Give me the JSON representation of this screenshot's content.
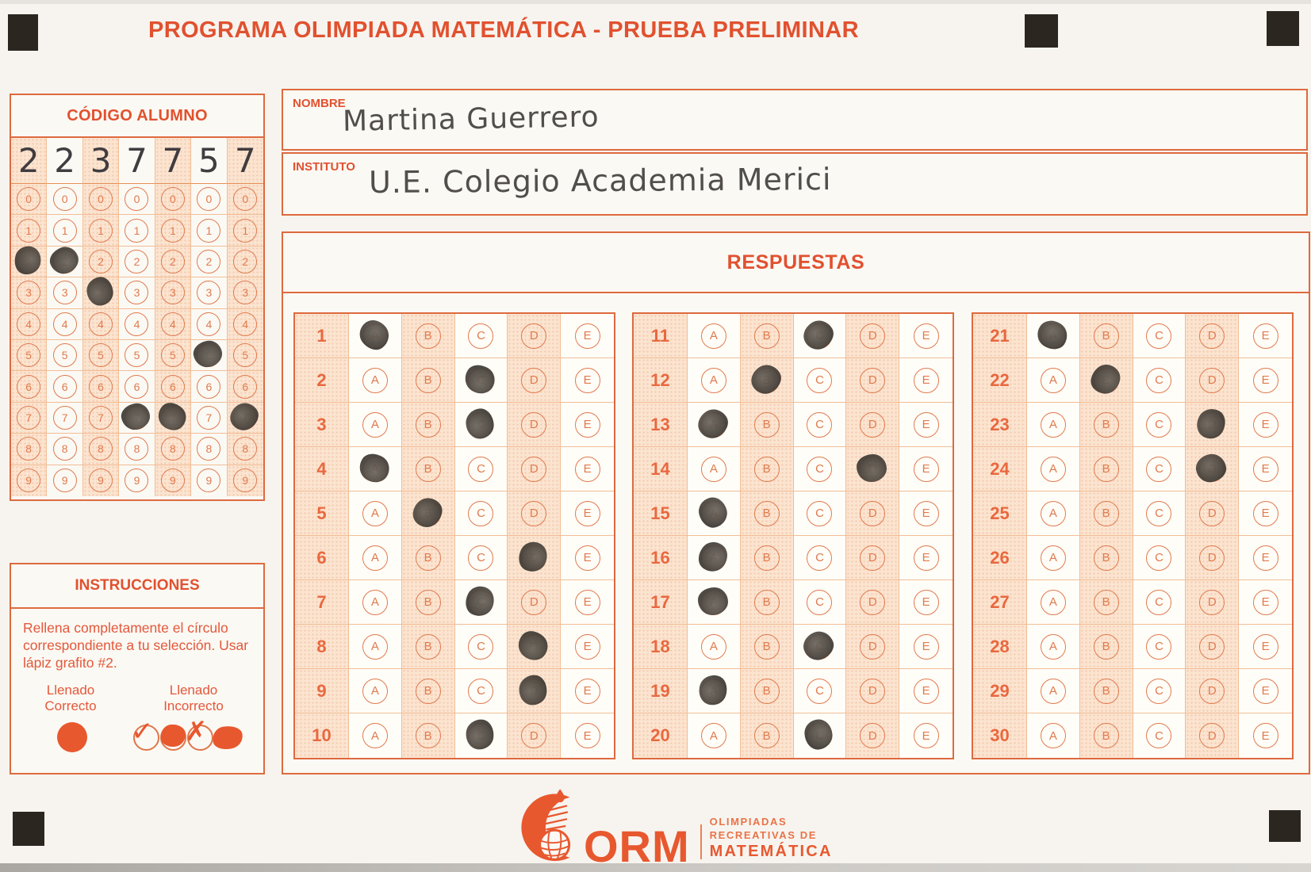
{
  "title": "PROGRAMA OLIMPIADA MATEMÁTICA  - PRUEBA PRELIMINAR",
  "colors": {
    "accent": "#e1512f",
    "bubble_border": "#e07a4e",
    "shaded_cell": "#fbe4d0",
    "pencil_graphite": "#46423d",
    "registration_mark": "#2b2620"
  },
  "codigo": {
    "header": "CÓDIGO ALUMNO",
    "digits": [
      "2",
      "2",
      "3",
      "7",
      "7",
      "5",
      "7"
    ],
    "bubble_values": [
      "0",
      "1",
      "2",
      "3",
      "4",
      "5",
      "6",
      "7",
      "8",
      "9"
    ],
    "filled": [
      2,
      2,
      3,
      7,
      7,
      5,
      7
    ]
  },
  "fields": {
    "nombre_label": "NOMBRE",
    "nombre_value": "Martina Guerrero",
    "instituto_label": "INSTITUTO",
    "instituto_value": "U.E. Colegio Academia Merici"
  },
  "respuestas": {
    "header": "RESPUESTAS",
    "options": [
      "A",
      "B",
      "C",
      "D",
      "E"
    ],
    "blocks": [
      {
        "start": 1,
        "end": 10,
        "answers": {
          "1": "A",
          "2": "C",
          "3": "C",
          "4": "A",
          "5": "B",
          "6": "D",
          "7": "C",
          "8": "D",
          "9": "D",
          "10": "C"
        }
      },
      {
        "start": 11,
        "end": 20,
        "answers": {
          "11": "C",
          "12": "B",
          "13": "A",
          "14": "D",
          "15": "A",
          "16": "A",
          "17": "A",
          "18": "C",
          "19": "A",
          "20": "C"
        }
      },
      {
        "start": 21,
        "end": 30,
        "answers": {
          "21": "A",
          "22": "B",
          "23": "D",
          "24": "D"
        }
      }
    ]
  },
  "instrucciones": {
    "header": "INSTRUCCIONES",
    "body": "Rellena completamente el círculo correspondiente a tu selección. Usar lápiz grafito #2.",
    "correct_line1": "Llenado",
    "correct_line2": "Correcto",
    "incorrect_line1": "Llenado",
    "incorrect_line2": "Incorrecto",
    "check_glyph": "✓",
    "cross_glyph": "✗"
  },
  "logo": {
    "acronym": "ORM",
    "line1": "OLIMPIADAS",
    "line2": "RECREATIVAS DE",
    "line3": "MATEMÁTICA"
  }
}
